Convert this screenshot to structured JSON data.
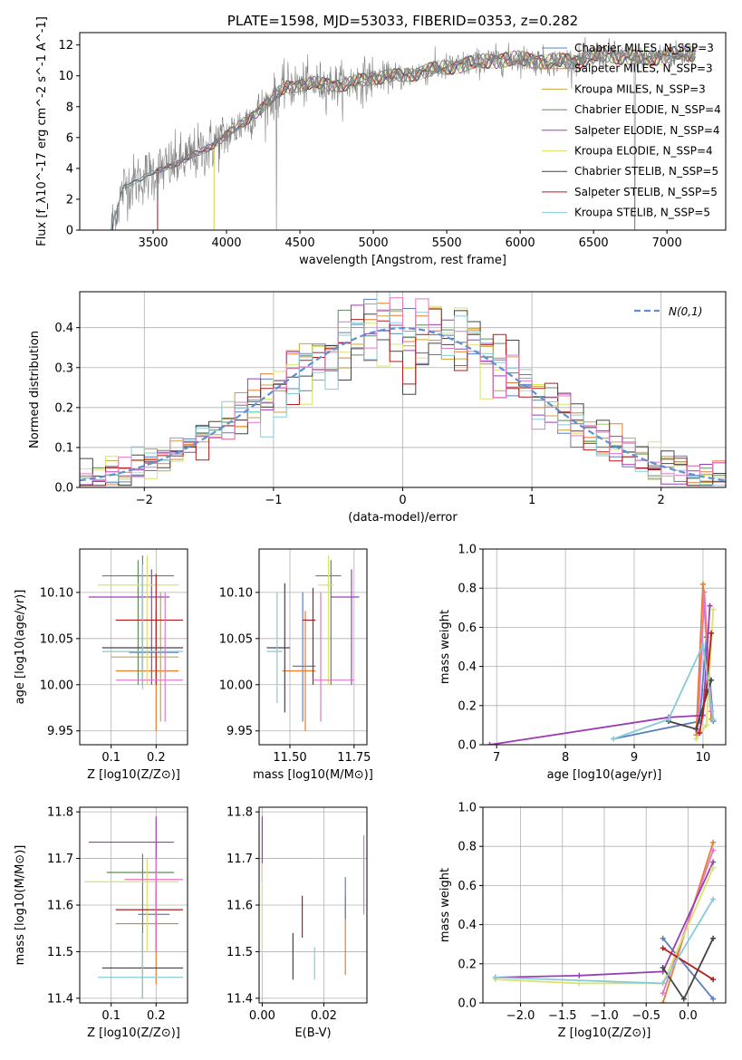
{
  "chart_data": [
    {
      "id": "spectrum",
      "type": "line",
      "title": "PLATE=1598, MJD=53033, FIBERID=0353, z=0.282",
      "xlabel": "wavelength [Angstrom, rest frame]",
      "ylabel": "Flux [f_λ10^-17 erg cm^-2 s^-1 A^-1]",
      "xlim": [
        3000,
        7400
      ],
      "ylim": [
        0,
        12.8
      ],
      "xticks": [
        3500,
        4000,
        4500,
        5000,
        5500,
        6000,
        6500,
        7000
      ],
      "yticks": [
        0,
        2,
        4,
        6,
        8,
        10,
        12
      ],
      "grid": false,
      "legend_position": "top-right",
      "data_envelope": {
        "x": [
          3210,
          3300,
          3450,
          3550,
          3700,
          3850,
          3950,
          4050,
          4200,
          4300,
          4400,
          4600,
          4800,
          5000,
          5200,
          5400,
          5600,
          5800,
          6000,
          6200,
          6400,
          6600,
          6800,
          7000,
          7200
        ],
        "y": [
          0.0,
          2.8,
          3.5,
          3.9,
          4.5,
          5.2,
          5.8,
          6.5,
          7.6,
          8.4,
          9.3,
          9.5,
          9.4,
          9.9,
          10.0,
          10.4,
          10.7,
          11.0,
          11.1,
          10.9,
          11.0,
          11.4,
          11.1,
          11.3,
          11.5
        ]
      },
      "series": [
        {
          "name": "Chabrier MILES, N_SSP=3",
          "color": "#5b7fbf"
        },
        {
          "name": "Salpeter MILES, N_SSP=3",
          "color": "#e87d2e"
        },
        {
          "name": "Kroupa MILES, N_SSP=3",
          "color": "#c9a23a"
        },
        {
          "name": "Chabrier ELODIE, N_SSP=4",
          "color": "#5e8a5e"
        },
        {
          "name": "Salpeter ELODIE, N_SSP=4",
          "color": "#9a3fb3"
        },
        {
          "name": "Kroupa ELODIE, N_SSP=4",
          "color": "#d9e36a"
        },
        {
          "name": "Chabrier STELIB, N_SSP=5",
          "color": "#444444"
        },
        {
          "name": "Salpeter STELIB, N_SSP=5",
          "color": "#b01c1c"
        },
        {
          "name": "Kroupa STELIB, N_SSP=5",
          "color": "#86cbd8"
        }
      ]
    },
    {
      "id": "residuals",
      "type": "line",
      "xlabel": "(data-model)/error",
      "ylabel": "Normed distribution",
      "xlim": [
        -2.5,
        2.5
      ],
      "ylim": [
        0,
        0.49
      ],
      "xticks": [
        -2,
        -1,
        0,
        1,
        2
      ],
      "yticks": [
        0.0,
        0.1,
        0.2,
        0.3,
        0.4
      ],
      "grid": true,
      "legend_position": "top-right",
      "legend": "N(0,1)",
      "bin_width": 0.1
    },
    {
      "id": "age_vs_Z",
      "type": "scatter",
      "xlabel": "Z [log10(Z/Z⊙)]",
      "ylabel": "age  [log10(age/yr)]",
      "xlim": [
        0.03,
        0.27
      ],
      "ylim": [
        9.935,
        10.147
      ],
      "xticks": [
        0.1,
        0.2
      ],
      "yticks": [
        9.95,
        10.0,
        10.05,
        10.1
      ],
      "grid": true,
      "points": [
        {
          "x": 0.17,
          "y": 10.035,
          "xerr": [
            0.14,
            0.25
          ],
          "yerr": [
            10.0,
            10.14
          ],
          "color": "#5b7fbf"
        },
        {
          "x": 0.2,
          "y": 10.015,
          "xerr": [
            0.11,
            0.25
          ],
          "yerr": [
            9.95,
            10.08
          ],
          "color": "#e87d2e"
        },
        {
          "x": 0.21,
          "y": 10.03,
          "xerr": [
            0.1,
            0.25
          ],
          "yerr": [
            9.96,
            10.1
          ],
          "color": "#c9a23a"
        },
        {
          "x": 0.16,
          "y": 10.118,
          "xerr": [
            0.08,
            0.24
          ],
          "yerr": [
            10.0,
            10.135
          ],
          "color": "#5e8a5e"
        },
        {
          "x": 0.19,
          "y": 10.095,
          "xerr": [
            0.05,
            0.23
          ],
          "yerr": [
            10.0,
            10.125
          ],
          "color": "#9a3fb3"
        },
        {
          "x": 0.18,
          "y": 10.108,
          "xerr": [
            0.07,
            0.25
          ],
          "yerr": [
            10.0,
            10.14
          ],
          "color": "#d9e36a"
        },
        {
          "x": 0.17,
          "y": 10.04,
          "xerr": [
            0.08,
            0.26
          ],
          "yerr": [
            10.0,
            10.12
          ],
          "color": "#444444"
        },
        {
          "x": 0.2,
          "y": 10.07,
          "xerr": [
            0.11,
            0.26
          ],
          "yerr": [
            10.0,
            10.12
          ],
          "color": "#b01c1c"
        },
        {
          "x": 0.17,
          "y": 10.036,
          "xerr": [
            0.08,
            0.26
          ],
          "yerr": [
            9.995,
            10.13
          ],
          "color": "#86cbd8"
        },
        {
          "x": 0.22,
          "y": 10.005,
          "xerr": [
            0.11,
            0.26
          ],
          "yerr": [
            9.96,
            10.1
          ],
          "color": "#e377c2"
        }
      ]
    },
    {
      "id": "age_vs_mass",
      "type": "scatter",
      "xlabel": "mass [log10(M/M⊙)]",
      "xlim": [
        11.38,
        11.8
      ],
      "ylim": [
        9.935,
        10.147
      ],
      "xticks": [
        11.5,
        11.75
      ],
      "yticks": [
        9.95,
        10.0,
        10.05,
        10.1
      ],
      "grid": true,
      "points": [
        {
          "x": 11.55,
          "y": 10.02,
          "xerr": [
            11.51,
            11.6
          ],
          "yerr": [
            9.96,
            10.1
          ],
          "color": "#5b7fbf"
        },
        {
          "x": 11.56,
          "y": 10.015,
          "xerr": [
            11.47,
            11.6
          ],
          "yerr": [
            9.95,
            10.08
          ],
          "color": "#e87d2e"
        },
        {
          "x": 11.66,
          "y": 10.118,
          "xerr": [
            11.6,
            11.7
          ],
          "yerr": [
            10.0,
            10.135
          ],
          "color": "#5e8a5e"
        },
        {
          "x": 11.74,
          "y": 10.095,
          "xerr": [
            11.66,
            11.77
          ],
          "yerr": [
            10.0,
            10.125
          ],
          "color": "#9a3fb3"
        },
        {
          "x": 11.65,
          "y": 10.108,
          "xerr": [
            11.61,
            11.67
          ],
          "yerr": [
            10.0,
            10.14
          ],
          "color": "#d9e36a"
        },
        {
          "x": 11.48,
          "y": 10.04,
          "xerr": [
            11.41,
            11.5
          ],
          "yerr": [
            9.97,
            10.11
          ],
          "color": "#444444"
        },
        {
          "x": 11.59,
          "y": 10.07,
          "xerr": [
            11.55,
            11.6
          ],
          "yerr": [
            10.0,
            10.105
          ],
          "color": "#b01c1c"
        },
        {
          "x": 11.45,
          "y": 10.036,
          "xerr": [
            11.41,
            11.47
          ],
          "yerr": [
            9.98,
            10.1
          ],
          "color": "#86cbd8"
        },
        {
          "x": 11.62,
          "y": 10.005,
          "xerr": [
            11.59,
            11.75
          ],
          "yerr": [
            9.96,
            10.1
          ],
          "color": "#e377c2"
        }
      ]
    },
    {
      "id": "weight_vs_age",
      "type": "line",
      "xlabel": "age  [log10(age/yr)]",
      "ylabel": "mass weight",
      "xlim": [
        6.8,
        10.33
      ],
      "ylim": [
        0,
        1.0
      ],
      "xticks": [
        7,
        8,
        9,
        10
      ],
      "yticks": [
        0.0,
        0.2,
        0.4,
        0.6,
        0.8,
        1.0
      ],
      "grid": true,
      "series": [
        {
          "color": "#5b7fbf",
          "x": [
            8.7,
            9.95,
            10.05,
            10.15
          ],
          "y": [
            0.03,
            0.12,
            0.55,
            0.12
          ]
        },
        {
          "color": "#e87d2e",
          "x": [
            9.9,
            10.0,
            10.12
          ],
          "y": [
            0.05,
            0.82,
            0.13
          ]
        },
        {
          "color": "#e377c2",
          "x": [
            9.92,
            10.02,
            10.12
          ],
          "y": [
            0.05,
            0.78,
            0.17
          ]
        },
        {
          "color": "#9a3fb3",
          "x": [
            6.9,
            9.5,
            10.0,
            10.1
          ],
          "y": [
            0.0,
            0.14,
            0.15,
            0.71
          ]
        },
        {
          "color": "#d9e36a",
          "x": [
            9.9,
            10.05,
            10.15
          ],
          "y": [
            0.03,
            0.1,
            0.69
          ]
        },
        {
          "color": "#444444",
          "x": [
            9.5,
            9.9,
            10.12
          ],
          "y": [
            0.12,
            0.08,
            0.33
          ]
        },
        {
          "color": "#b01c1c",
          "x": [
            9.95,
            10.05,
            10.12
          ],
          "y": [
            0.06,
            0.28,
            0.57
          ]
        },
        {
          "color": "#86cbd8",
          "x": [
            8.7,
            9.5,
            10.0,
            10.15
          ],
          "y": [
            0.03,
            0.13,
            0.51,
            0.13
          ]
        }
      ]
    },
    {
      "id": "mass_vs_Z",
      "type": "scatter",
      "xlabel": "Z [log10(Z/Z⊙)]",
      "ylabel": "mass [log10(M/M⊙)]",
      "xlim": [
        0.03,
        0.27
      ],
      "ylim": [
        11.39,
        11.81
      ],
      "xticks": [
        0.1,
        0.2
      ],
      "yticks": [
        11.4,
        11.5,
        11.6,
        11.7,
        11.8
      ],
      "grid": true,
      "points": [
        {
          "x": 0.2,
          "y": 11.58,
          "xerr": [
            0.16,
            0.23
          ],
          "yerr": [
            11.5,
            11.66
          ],
          "color": "#5b7fbf"
        },
        {
          "x": 0.2,
          "y": 11.56,
          "xerr": [
            0.11,
            0.25
          ],
          "yerr": [
            11.43,
            11.6
          ],
          "color": "#e87d2e"
        },
        {
          "x": 0.17,
          "y": 11.67,
          "xerr": [
            0.09,
            0.24
          ],
          "yerr": [
            11.5,
            11.71
          ],
          "color": "#5e8a5e"
        },
        {
          "x": 0.2,
          "y": 11.735,
          "xerr": [
            0.05,
            0.24
          ],
          "yerr": [
            11.6,
            11.79
          ],
          "color": "#9a3fb3"
        },
        {
          "x": 0.18,
          "y": 11.65,
          "xerr": [
            0.04,
            0.25
          ],
          "yerr": [
            11.5,
            11.7
          ],
          "color": "#d9e36a"
        },
        {
          "x": 0.17,
          "y": 11.465,
          "xerr": [
            0.08,
            0.26
          ],
          "yerr": [
            11.4,
            11.54
          ],
          "color": "#444444"
        },
        {
          "x": 0.2,
          "y": 11.59,
          "xerr": [
            0.11,
            0.26
          ],
          "yerr": [
            11.5,
            11.63
          ],
          "color": "#b01c1c"
        },
        {
          "x": 0.17,
          "y": 11.445,
          "xerr": [
            0.07,
            0.26
          ],
          "yerr": [
            11.4,
            11.54
          ],
          "color": "#86cbd8"
        },
        {
          "x": 0.2,
          "y": 11.655,
          "xerr": [
            0.13,
            0.26
          ],
          "yerr": [
            11.5,
            11.7
          ],
          "color": "#e377c2"
        }
      ]
    },
    {
      "id": "mass_vs_ebv",
      "type": "scatter",
      "xlabel": "E(B-V)",
      "xlim": [
        -0.001,
        0.034
      ],
      "ylim": [
        11.39,
        11.81
      ],
      "xticks": [
        0.0,
        0.02
      ],
      "yticks": [
        11.4,
        11.5,
        11.6,
        11.7,
        11.8
      ],
      "grid": true,
      "points": [
        {
          "x": 0.0,
          "yerr": [
            11.65,
            11.79
          ],
          "color": "#9a3fb3"
        },
        {
          "x": 0.0,
          "yerr": [
            11.5,
            11.69
          ],
          "color": "#d9e36a"
        },
        {
          "x": 0.01,
          "yerr": [
            11.44,
            11.54
          ],
          "color": "#444444"
        },
        {
          "x": 0.013,
          "yerr": [
            11.53,
            11.62
          ],
          "color": "#b01c1c"
        },
        {
          "x": 0.017,
          "yerr": [
            11.44,
            11.51
          ],
          "color": "#86cbd8"
        },
        {
          "x": 0.027,
          "yerr": [
            11.45,
            11.62
          ],
          "color": "#e87d2e"
        },
        {
          "x": 0.027,
          "yerr": [
            11.57,
            11.66
          ],
          "color": "#5b7fbf"
        },
        {
          "x": 0.033,
          "yerr": [
            11.58,
            11.75
          ],
          "color": "#e377c2"
        }
      ]
    },
    {
      "id": "weight_vs_Z",
      "type": "line",
      "xlabel": "Z [log10(Z/Z⊙)]",
      "ylabel": "mass weight",
      "xlim": [
        -2.45,
        0.45
      ],
      "ylim": [
        0,
        1.0
      ],
      "xticks": [
        -2.0,
        -1.5,
        -1.0,
        -0.5,
        0.0
      ],
      "yticks": [
        0.0,
        0.2,
        0.4,
        0.6,
        0.8,
        1.0
      ],
      "grid": true,
      "series": [
        {
          "color": "#5b7fbf",
          "x": [
            -0.3,
            0.3
          ],
          "y": [
            0.33,
            0.02
          ]
        },
        {
          "color": "#e87d2e",
          "x": [
            -0.3,
            0.3
          ],
          "y": [
            0.0,
            0.82
          ]
        },
        {
          "color": "#e377c2",
          "x": [
            -0.3,
            0.3
          ],
          "y": [
            0.05,
            0.78
          ]
        },
        {
          "color": "#9a3fb3",
          "x": [
            -2.3,
            -1.3,
            -0.3,
            0.3
          ],
          "y": [
            0.13,
            0.14,
            0.16,
            0.72
          ]
        },
        {
          "color": "#d9e36a",
          "x": [
            -2.3,
            -1.3,
            -0.3,
            0.3
          ],
          "y": [
            0.12,
            0.1,
            0.1,
            0.69
          ]
        },
        {
          "color": "#444444",
          "x": [
            -0.3,
            -0.05,
            0.3
          ],
          "y": [
            0.18,
            0.02,
            0.33
          ]
        },
        {
          "color": "#b01c1c",
          "x": [
            -0.3,
            0.3
          ],
          "y": [
            0.28,
            0.12
          ]
        },
        {
          "color": "#86cbd8",
          "x": [
            -2.3,
            -0.3,
            0.3
          ],
          "y": [
            0.13,
            0.1,
            0.53
          ]
        }
      ]
    }
  ]
}
